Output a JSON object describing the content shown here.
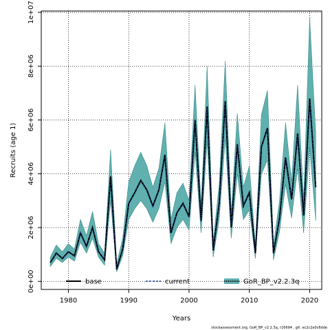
{
  "chart_data": {
    "type": "area",
    "xlabel": "Years",
    "ylabel": "Recruits (age 1)",
    "xlim": [
      1975.5,
      2022.0
    ],
    "ylim": [
      -300000.0,
      10050000.0
    ],
    "x_ticks": [
      1980,
      1990,
      2000,
      2010,
      2020
    ],
    "y_ticks": [
      0,
      2000000,
      4000000,
      6000000,
      8000000,
      10000000
    ],
    "y_tick_labels": [
      "0e+00",
      "2e+06",
      "4e+06",
      "6e+06",
      "8e+06",
      "1e+07"
    ],
    "grid": true,
    "legend_position": "bottom",
    "legend": [
      {
        "label": "base",
        "style": "solid-line"
      },
      {
        "label": "current",
        "style": "dashed-line"
      },
      {
        "label": "GoR_BP_v2.2.3q",
        "style": "dotted-line-band"
      }
    ],
    "footer": "stockassessment.org, GoR_BP_v2.2.3q, r16694 , git: ec2c2a0c6dde",
    "colors": {
      "band": "#5fb0ae",
      "band_edge": "#3d8c8a",
      "line": "#000000"
    },
    "x": [
      1977,
      1978,
      1979,
      1980,
      1981,
      1982,
      1983,
      1984,
      1985,
      1986,
      1987,
      1988,
      1989,
      1990,
      1991,
      1992,
      1993,
      1994,
      1995,
      1996,
      1997,
      1998,
      1999,
      2000,
      2001,
      2002,
      2003,
      2004,
      2005,
      2006,
      2007,
      2008,
      2009,
      2010,
      2011,
      2012,
      2013,
      2014,
      2015,
      2016,
      2017,
      2018,
      2019,
      2020,
      2021
    ],
    "series": [
      {
        "name": "GoR_BP_v2.2.3q",
        "values": [
          700000,
          1050000,
          850000,
          1100000,
          950000,
          1800000,
          1300000,
          2000000,
          1100000,
          800000,
          3900000,
          450000,
          1200000,
          2900000,
          3300000,
          3750000,
          3400000,
          2800000,
          3400000,
          4700000,
          1800000,
          2550000,
          2900000,
          2400000,
          6000000,
          2250000,
          6500000,
          1150000,
          2900000,
          6700000,
          2000000,
          5100000,
          2800000,
          3300000,
          1050000,
          5000000,
          5700000,
          1050000,
          2350000,
          4600000,
          3050000,
          5500000,
          2450000,
          6800000,
          3500000
        ]
      },
      {
        "name": "current",
        "values": [
          700000,
          1050000,
          850000,
          1100000,
          950000,
          1800000,
          1300000,
          2000000,
          1100000,
          800000,
          3900000,
          450000,
          1200000,
          2900000,
          3300000,
          3750000,
          3400000,
          2800000,
          3400000,
          4700000,
          1800000,
          2550000,
          2900000,
          2400000,
          6000000,
          2250000,
          6500000,
          1150000,
          2900000,
          6700000,
          2000000,
          5100000,
          2800000,
          3300000,
          1050000,
          5000000,
          5700000,
          1050000,
          2350000,
          4600000,
          3050000,
          5500000,
          2450000,
          6800000,
          3500000
        ]
      },
      {
        "name": "base",
        "values": [
          700000,
          1050000,
          850000,
          1100000,
          950000,
          1800000,
          1300000,
          2000000,
          1100000,
          800000,
          3900000,
          450000,
          1200000,
          2900000,
          3300000,
          3750000,
          3400000,
          2800000,
          3400000,
          4700000,
          1800000,
          2550000,
          2900000,
          2400000,
          6000000,
          2250000,
          6500000,
          1150000,
          2900000,
          6700000,
          2000000,
          5100000,
          2800000,
          3300000,
          1050000,
          5000000,
          5700000,
          1050000,
          2350000,
          4600000,
          3050000,
          5500000,
          2450000,
          6800000,
          3500000
        ]
      }
    ],
    "confidence_band": {
      "lower": [
        550000,
        850000,
        700000,
        900000,
        750000,
        1450000,
        1050000,
        1600000,
        900000,
        600000,
        3000000,
        350000,
        950000,
        2300000,
        2700000,
        3000000,
        2700000,
        2200000,
        2700000,
        3700000,
        1400000,
        2000000,
        2300000,
        1900000,
        4800000,
        1800000,
        5200000,
        900000,
        2300000,
        5300000,
        1600000,
        4000000,
        2300000,
        2650000,
        850000,
        4000000,
        4500000,
        800000,
        1850000,
        3600000,
        2350000,
        4200000,
        1800000,
        5000000,
        2250000
      ],
      "upper": [
        900000,
        1350000,
        1100000,
        1400000,
        1200000,
        2300000,
        1700000,
        2600000,
        1400000,
        1050000,
        4900000,
        650000,
        1600000,
        3700000,
        4300000,
        4800000,
        4300000,
        3500000,
        4200000,
        5900000,
        2300000,
        3300000,
        3650000,
        3000000,
        7300000,
        2800000,
        8000000,
        1500000,
        3600000,
        8200000,
        2550000,
        6250000,
        3500000,
        4300000,
        1350000,
        6200000,
        7100000,
        1350000,
        3000000,
        5900000,
        3700000,
        7300000,
        3050000,
        9800000,
        5500000
      ]
    }
  }
}
